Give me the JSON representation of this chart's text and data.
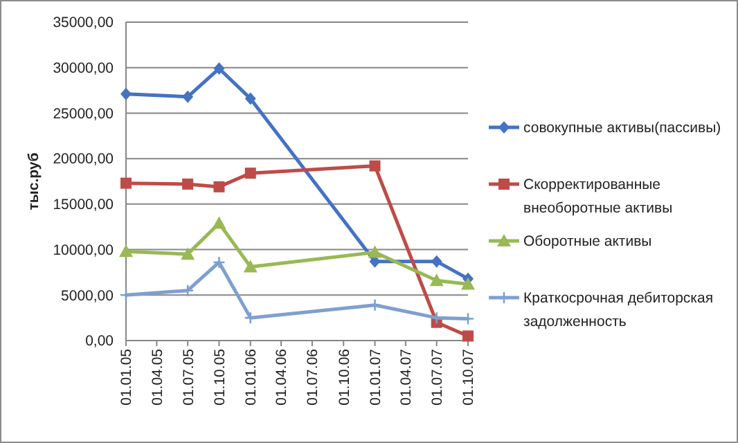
{
  "chart_data": {
    "type": "line",
    "ylabel": "тыс.руб",
    "ylim": [
      0,
      35000
    ],
    "yticks": [
      {
        "value": 0,
        "label": "0,00"
      },
      {
        "value": 5000,
        "label": "5000,00"
      },
      {
        "value": 10000,
        "label": "10000,00"
      },
      {
        "value": 15000,
        "label": "15000,00"
      },
      {
        "value": 20000,
        "label": "20000,00"
      },
      {
        "value": 25000,
        "label": "25000,00"
      },
      {
        "value": 30000,
        "label": "30000,00"
      },
      {
        "value": 35000,
        "label": "35000,00"
      }
    ],
    "xlim": [
      "2005-01-01",
      "2007-10-01"
    ],
    "xticks": [
      {
        "value": "2005-01-01",
        "label": "01.01.05"
      },
      {
        "value": "2005-04-01",
        "label": "01.04.05"
      },
      {
        "value": "2005-07-01",
        "label": "01.07.05"
      },
      {
        "value": "2005-10-01",
        "label": "01.10.05"
      },
      {
        "value": "2006-01-01",
        "label": "01.01.06"
      },
      {
        "value": "2006-04-01",
        "label": "01.04.06"
      },
      {
        "value": "2006-07-01",
        "label": "01.07.06"
      },
      {
        "value": "2006-10-01",
        "label": "01.10.06"
      },
      {
        "value": "2007-01-01",
        "label": "01.01.07"
      },
      {
        "value": "2007-04-01",
        "label": "01.04.07"
      },
      {
        "value": "2007-07-01",
        "label": "01.07.07"
      },
      {
        "value": "2007-10-01",
        "label": "01.10.07"
      }
    ],
    "x": [
      "2005-01-01",
      "2005-07-01",
      "2005-10-01",
      "2006-01-01",
      "2007-01-01",
      "2007-07-01",
      "2007-10-01"
    ],
    "grid": "y",
    "legend": "right",
    "series": [
      {
        "name": "совокупные активы(пассивы)",
        "color": "#4472c4",
        "marker": "diamond",
        "values": [
          27100,
          26800,
          29900,
          26600,
          8700,
          8700,
          6800
        ]
      },
      {
        "name": "Скорректированные внеоборотные активы",
        "color": "#be4b48",
        "marker": "square",
        "values": [
          17300,
          17200,
          16900,
          18400,
          19200,
          2000,
          500
        ]
      },
      {
        "name": "Оборотные активы",
        "color": "#98b954",
        "marker": "triangle",
        "values": [
          9800,
          9500,
          12900,
          8100,
          9700,
          6600,
          6200
        ]
      },
      {
        "name": "Краткосрочная дебиторская задолженность",
        "color": "#7f9fd0",
        "marker": "cross",
        "values": [
          5000,
          5500,
          8600,
          2500,
          3900,
          2500,
          2400
        ]
      }
    ]
  }
}
